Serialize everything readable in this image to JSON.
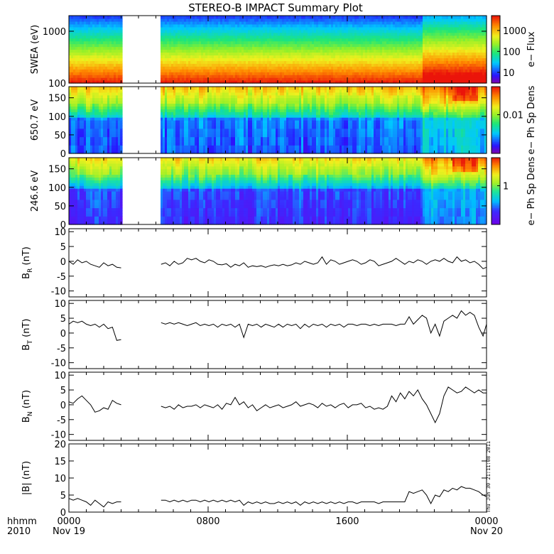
{
  "chart_data": {
    "type": "multi-panel",
    "title": "STEREO-B IMPACT Summary Plot",
    "x_axis": {
      "ticks": [
        "0000",
        "0800",
        "1600",
        "0000"
      ],
      "tick_dates": [
        "Nov 19",
        "",
        "",
        "Nov 20"
      ],
      "corner_top": "hhmm",
      "corner_bottom": "2010",
      "range_hours": [
        0,
        24
      ]
    },
    "data_gap_hours": [
      3.1,
      5.3
    ],
    "timestamp": "Thu Jun 30 21:11:08 2011",
    "spectrograms": [
      {
        "name": "swea",
        "ylabel": "SWEA (eV)",
        "y_scale": "log",
        "ylim": [
          100,
          2000
        ],
        "yticks": [
          "1000",
          "100"
        ],
        "colorbar_label": "e− Flux",
        "colorbar_ticks": [
          "1000",
          "100",
          "10"
        ],
        "colormap": "spectral"
      },
      {
        "name": "pad650",
        "ylabel": "650.7 eV",
        "ylim": [
          0,
          180
        ],
        "yticks": [
          "150",
          "100",
          "50",
          "0"
        ],
        "colorbar_label": "e− Ph Sp Dens",
        "colorbar_ticks": [
          "0.01"
        ],
        "colormap": "spectral"
      },
      {
        "name": "pad246",
        "ylabel": "246.6 eV",
        "ylim": [
          0,
          180
        ],
        "yticks": [
          "150",
          "100",
          "50",
          "0"
        ],
        "colorbar_label": "e− Ph Sp Dens",
        "colorbar_ticks": [
          "1"
        ],
        "colormap": "spectral-violet"
      }
    ],
    "line_panels": [
      {
        "name": "br",
        "ylabel_main": "B",
        "ylabel_sub": "R",
        "ylabel_unit": " (nT)",
        "ylim": [
          -12,
          11
        ],
        "yticks": [
          "10",
          "5",
          "0",
          "-5",
          "-10"
        ],
        "x": [
          0.0,
          0.25,
          0.5,
          0.75,
          1.0,
          1.25,
          1.5,
          1.75,
          2.0,
          2.25,
          2.5,
          2.75,
          3.0,
          5.3,
          5.55,
          5.8,
          6.05,
          6.3,
          6.55,
          6.8,
          7.05,
          7.3,
          7.55,
          7.8,
          8.05,
          8.3,
          8.55,
          8.8,
          9.05,
          9.3,
          9.55,
          9.8,
          10.05,
          10.3,
          10.55,
          10.8,
          11.05,
          11.3,
          11.55,
          11.8,
          12.05,
          12.3,
          12.55,
          12.8,
          13.05,
          13.3,
          13.55,
          13.8,
          14.05,
          14.3,
          14.55,
          14.8,
          15.05,
          15.3,
          15.55,
          15.8,
          16.05,
          16.3,
          16.55,
          16.8,
          17.05,
          17.3,
          17.55,
          17.8,
          18.05,
          18.3,
          18.55,
          18.8,
          19.05,
          19.3,
          19.55,
          19.8,
          20.05,
          20.3,
          20.55,
          20.8,
          21.05,
          21.3,
          21.55,
          21.8,
          22.05,
          22.3,
          22.55,
          22.8,
          23.05,
          23.3,
          23.55,
          23.8,
          24.0
        ],
        "y": [
          0,
          -1,
          0.5,
          -0.5,
          0,
          -1,
          -1.5,
          -2,
          -0.5,
          -1.5,
          -1,
          -2,
          -2.2,
          -1,
          -0.5,
          -1.5,
          0,
          -1,
          -0.5,
          1,
          0.5,
          1,
          0,
          -0.5,
          0.5,
          0,
          -1,
          -1.2,
          -0.8,
          -2,
          -1,
          -1.5,
          -0.5,
          -2,
          -1.5,
          -1.8,
          -1.5,
          -2,
          -1.5,
          -1.2,
          -1.5,
          -1,
          -1.5,
          -1.2,
          -0.5,
          -1,
          0,
          -0.5,
          -1,
          -0.5,
          1.5,
          -1,
          0.5,
          0,
          -1,
          -0.5,
          0,
          0.5,
          0,
          -1,
          -0.5,
          0.5,
          0,
          -1.5,
          -1,
          -0.5,
          0,
          1,
          0,
          -1,
          0,
          -0.5,
          0.5,
          0,
          -1,
          0,
          0.5,
          0,
          1,
          0,
          -0.5,
          1.5,
          0,
          0.5,
          -0.5,
          0,
          -1,
          -2.5,
          -2
        ]
      },
      {
        "name": "bt",
        "ylabel_main": "B",
        "ylabel_sub": "T",
        "ylabel_unit": " (nT)",
        "ylim": [
          -12,
          11
        ],
        "yticks": [
          "10",
          "5",
          "0",
          "-5",
          "-10"
        ],
        "x": [
          0.0,
          0.25,
          0.5,
          0.75,
          1.0,
          1.25,
          1.5,
          1.75,
          2.0,
          2.25,
          2.5,
          2.75,
          3.0,
          5.3,
          5.55,
          5.8,
          6.05,
          6.3,
          6.55,
          6.8,
          7.05,
          7.3,
          7.55,
          7.8,
          8.05,
          8.3,
          8.55,
          8.8,
          9.05,
          9.3,
          9.55,
          9.8,
          10.05,
          10.3,
          10.55,
          10.8,
          11.05,
          11.3,
          11.55,
          11.8,
          12.05,
          12.3,
          12.55,
          12.8,
          13.05,
          13.3,
          13.55,
          13.8,
          14.05,
          14.3,
          14.55,
          14.8,
          15.05,
          15.3,
          15.55,
          15.8,
          16.05,
          16.3,
          16.55,
          16.8,
          17.05,
          17.3,
          17.55,
          17.8,
          18.05,
          18.3,
          18.55,
          18.8,
          19.05,
          19.3,
          19.55,
          19.8,
          20.05,
          20.3,
          20.55,
          20.8,
          21.05,
          21.3,
          21.55,
          21.8,
          22.05,
          22.3,
          22.55,
          22.8,
          23.05,
          23.3,
          23.55,
          23.8,
          24.0
        ],
        "y": [
          3,
          4,
          3.5,
          4,
          3,
          2.5,
          3,
          2,
          3,
          1.5,
          2,
          -2.5,
          -2.2,
          3.5,
          3,
          3.5,
          3,
          3.5,
          3,
          2.5,
          3,
          3.5,
          2.5,
          3,
          2.5,
          3,
          2,
          3,
          2.5,
          3,
          2,
          3,
          -1.5,
          3,
          2.5,
          3,
          2,
          3,
          2.5,
          2,
          3,
          2,
          3,
          2.5,
          3,
          1.5,
          3,
          2,
          3,
          2.5,
          3,
          2,
          3,
          2.5,
          3,
          2,
          3,
          3,
          2.5,
          3,
          3,
          2.5,
          3,
          2.5,
          3,
          3,
          3,
          2.5,
          3,
          3,
          5.5,
          3,
          4.5,
          6,
          5,
          0,
          3,
          -1,
          4,
          5,
          6,
          5,
          7.5,
          6,
          7,
          6,
          2,
          -1,
          3
        ]
      },
      {
        "name": "bn",
        "ylabel_main": "B",
        "ylabel_sub": "N",
        "ylabel_unit": " (nT)",
        "ylim": [
          -12,
          11
        ],
        "yticks": [
          "10",
          "5",
          "0",
          "-5",
          "-10"
        ],
        "x": [
          0.0,
          0.25,
          0.5,
          0.75,
          1.0,
          1.25,
          1.5,
          1.75,
          2.0,
          2.25,
          2.5,
          2.75,
          3.0,
          5.3,
          5.55,
          5.8,
          6.05,
          6.3,
          6.55,
          6.8,
          7.05,
          7.3,
          7.55,
          7.8,
          8.05,
          8.3,
          8.55,
          8.8,
          9.05,
          9.3,
          9.55,
          9.8,
          10.05,
          10.3,
          10.55,
          10.8,
          11.05,
          11.3,
          11.55,
          11.8,
          12.05,
          12.3,
          12.55,
          12.8,
          13.05,
          13.3,
          13.55,
          13.8,
          14.05,
          14.3,
          14.55,
          14.8,
          15.05,
          15.3,
          15.55,
          15.8,
          16.05,
          16.3,
          16.55,
          16.8,
          17.05,
          17.3,
          17.55,
          17.8,
          18.05,
          18.3,
          18.55,
          18.8,
          19.05,
          19.3,
          19.55,
          19.8,
          20.05,
          20.3,
          20.55,
          20.8,
          21.05,
          21.3,
          21.55,
          21.8,
          22.05,
          22.3,
          22.55,
          22.8,
          23.05,
          23.3,
          23.55,
          23.8,
          24.0
        ],
        "y": [
          1,
          0.5,
          2,
          3,
          1.5,
          0,
          -2.5,
          -2,
          -1,
          -1.5,
          1.5,
          0.5,
          0,
          -0.5,
          -1,
          -0.5,
          -1.5,
          0,
          -1,
          -0.5,
          -0.5,
          0,
          -1,
          0,
          -0.5,
          -1,
          0,
          -1.5,
          0.5,
          0,
          2.5,
          0,
          1,
          -1,
          0,
          -2,
          -1,
          0,
          -1,
          -0.5,
          0,
          -1,
          -0.5,
          0,
          1,
          -0.5,
          0,
          0.5,
          0,
          -1,
          0.5,
          -0.5,
          0,
          -1,
          0,
          0.5,
          -1,
          0,
          0,
          0.5,
          -1,
          -0.5,
          -1.5,
          -1,
          -1.5,
          -0.5,
          3,
          1,
          4,
          2,
          4.5,
          3,
          5,
          2,
          0,
          -3,
          -6,
          -3,
          3,
          6,
          5,
          4,
          4.5,
          6,
          5,
          4,
          5,
          4,
          4
        ]
      },
      {
        "name": "bmag",
        "ylabel_main": "|B|",
        "ylabel_sub": "",
        "ylabel_unit": " (nT)",
        "ylim": [
          0,
          20
        ],
        "yticks": [
          "20",
          "15",
          "10",
          "5",
          "0"
        ],
        "x": [
          0.0,
          0.25,
          0.5,
          0.75,
          1.0,
          1.25,
          1.5,
          1.75,
          2.0,
          2.25,
          2.5,
          2.75,
          3.0,
          5.3,
          5.55,
          5.8,
          6.05,
          6.3,
          6.55,
          6.8,
          7.05,
          7.3,
          7.55,
          7.8,
          8.05,
          8.3,
          8.55,
          8.8,
          9.05,
          9.3,
          9.55,
          9.8,
          10.05,
          10.3,
          10.55,
          10.8,
          11.05,
          11.3,
          11.55,
          11.8,
          12.05,
          12.3,
          12.55,
          12.8,
          13.05,
          13.3,
          13.55,
          13.8,
          14.05,
          14.3,
          14.55,
          14.8,
          15.05,
          15.3,
          15.55,
          15.8,
          16.05,
          16.3,
          16.55,
          16.8,
          17.05,
          17.3,
          17.55,
          17.8,
          18.05,
          18.3,
          18.55,
          18.8,
          19.05,
          19.3,
          19.55,
          19.8,
          20.05,
          20.3,
          20.55,
          20.8,
          21.05,
          21.3,
          21.55,
          21.8,
          22.05,
          22.3,
          22.55,
          22.8,
          23.05,
          23.3,
          23.55,
          23.8,
          24.0
        ],
        "y": [
          4,
          3.5,
          4,
          3.5,
          3,
          2,
          3.5,
          2.5,
          1.5,
          3,
          2.5,
          3,
          3,
          3.5,
          3.5,
          3,
          3.5,
          3,
          3.5,
          3,
          3.5,
          3.5,
          3,
          3.5,
          3,
          3.5,
          3,
          3.5,
          3,
          3.5,
          3,
          3.5,
          2,
          3,
          2.5,
          3,
          2.5,
          3,
          2.5,
          2.5,
          3,
          2.5,
          3,
          2.5,
          3,
          2,
          3,
          2.5,
          3,
          2.5,
          3,
          2.5,
          3,
          2.5,
          3,
          2.5,
          3,
          3,
          2.5,
          3,
          3,
          3,
          3,
          2.5,
          3,
          3,
          3,
          3,
          3,
          3,
          6,
          5.5,
          6,
          6.5,
          5,
          2.5,
          5,
          4.5,
          6.5,
          6,
          7,
          6.5,
          7.5,
          7,
          7,
          6.5,
          6,
          5,
          4.5
        ]
      }
    ]
  }
}
